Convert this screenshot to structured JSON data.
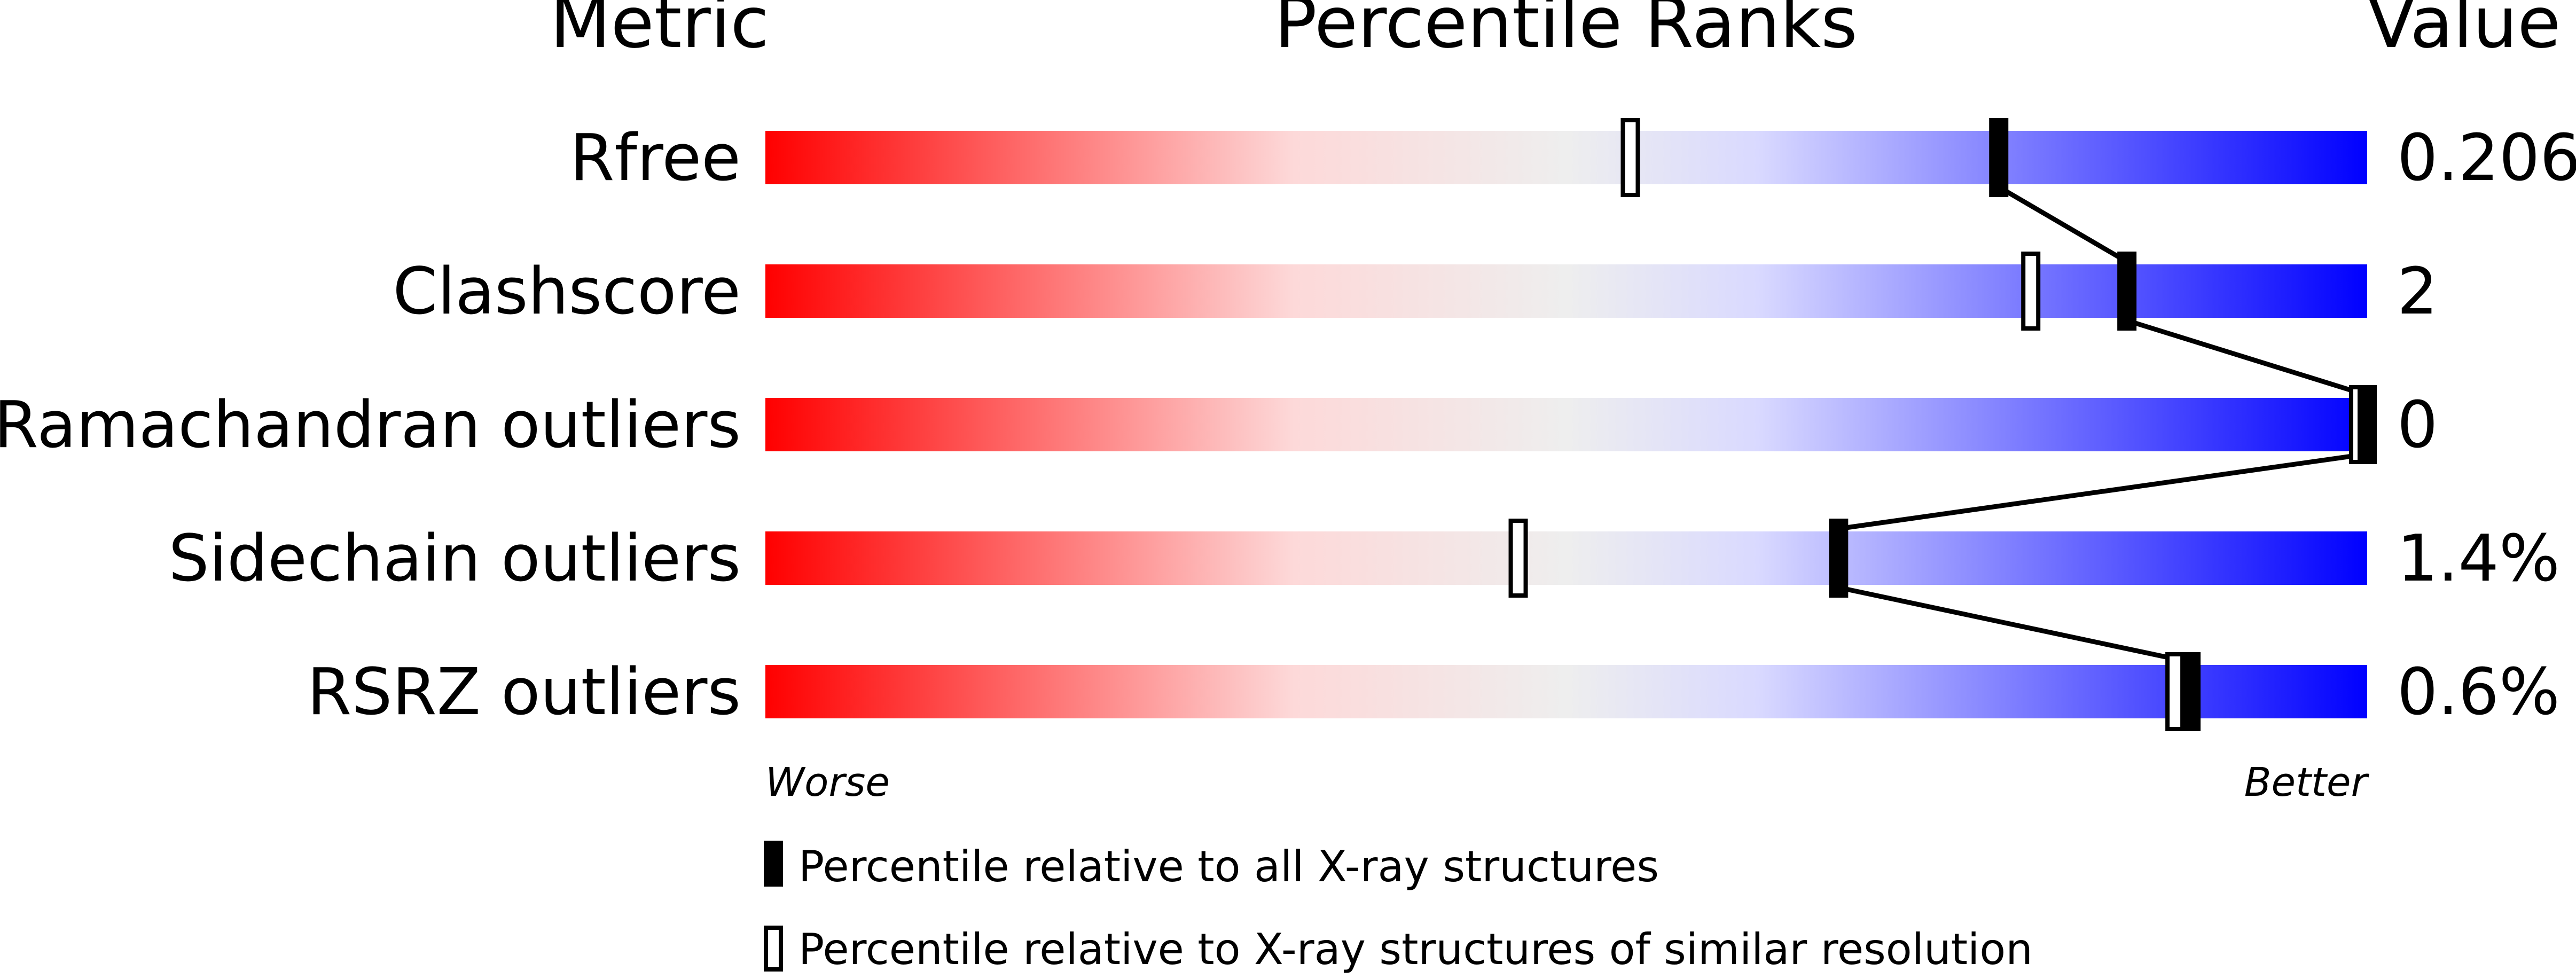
{
  "chart_data": {
    "type": "bar",
    "title": "Percentile Ranks",
    "header_metric": "Metric",
    "header_value": "Value",
    "xlim": [
      0,
      100
    ],
    "worse_label": "Worse",
    "better_label": "Better",
    "gradient_colors": [
      "#ff0000",
      "#fdd9d9",
      "#eeeeee",
      "#d9d9ff",
      "#0000ff"
    ],
    "rows": [
      {
        "metric": "Rfree",
        "value": "0.206",
        "percentile_all": 77,
        "percentile_similar": 54
      },
      {
        "metric": "Clashscore",
        "value": "2",
        "percentile_all": 85,
        "percentile_similar": 79
      },
      {
        "metric": "Ramachandran outliers",
        "value": "0",
        "percentile_all": 100,
        "percentile_similar": 100
      },
      {
        "metric": "Sidechain outliers",
        "value": "1.4%",
        "percentile_all": 67,
        "percentile_similar": 47
      },
      {
        "metric": "RSRZ outliers",
        "value": "0.6%",
        "percentile_all": 89,
        "percentile_similar": 88
      }
    ],
    "legend": [
      {
        "marker": "filled",
        "label": "Percentile relative to all X-ray structures"
      },
      {
        "marker": "open",
        "label": "Percentile relative to X-ray structures of similar resolution"
      }
    ]
  }
}
